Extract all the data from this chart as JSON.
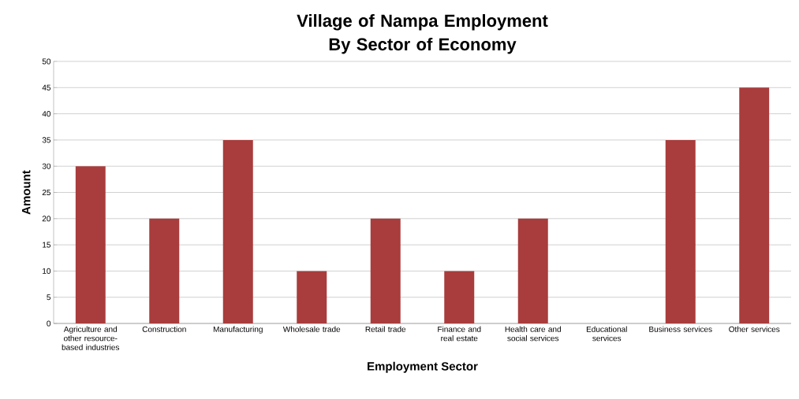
{
  "chart_data": {
    "type": "bar",
    "title": "Village of Nampa Employment By Sector of Economy",
    "xlabel": "Employment Sector",
    "ylabel": "Amount",
    "categories": [
      "Agriculture and other resource-based industries",
      "Construction",
      "Manufacturing",
      "Wholesale trade",
      "Retail trade",
      "Finance and real estate",
      "Health care and social services",
      "Educational services",
      "Business services",
      "Other services"
    ],
    "values": [
      30,
      20,
      35,
      10,
      20,
      10,
      20,
      0,
      35,
      45
    ],
    "color": "#a93c3c",
    "ylim": [
      0,
      50
    ],
    "yticks": [
      0,
      5,
      10,
      15,
      20,
      25,
      30,
      35,
      40,
      45,
      50
    ],
    "grid": "y"
  }
}
